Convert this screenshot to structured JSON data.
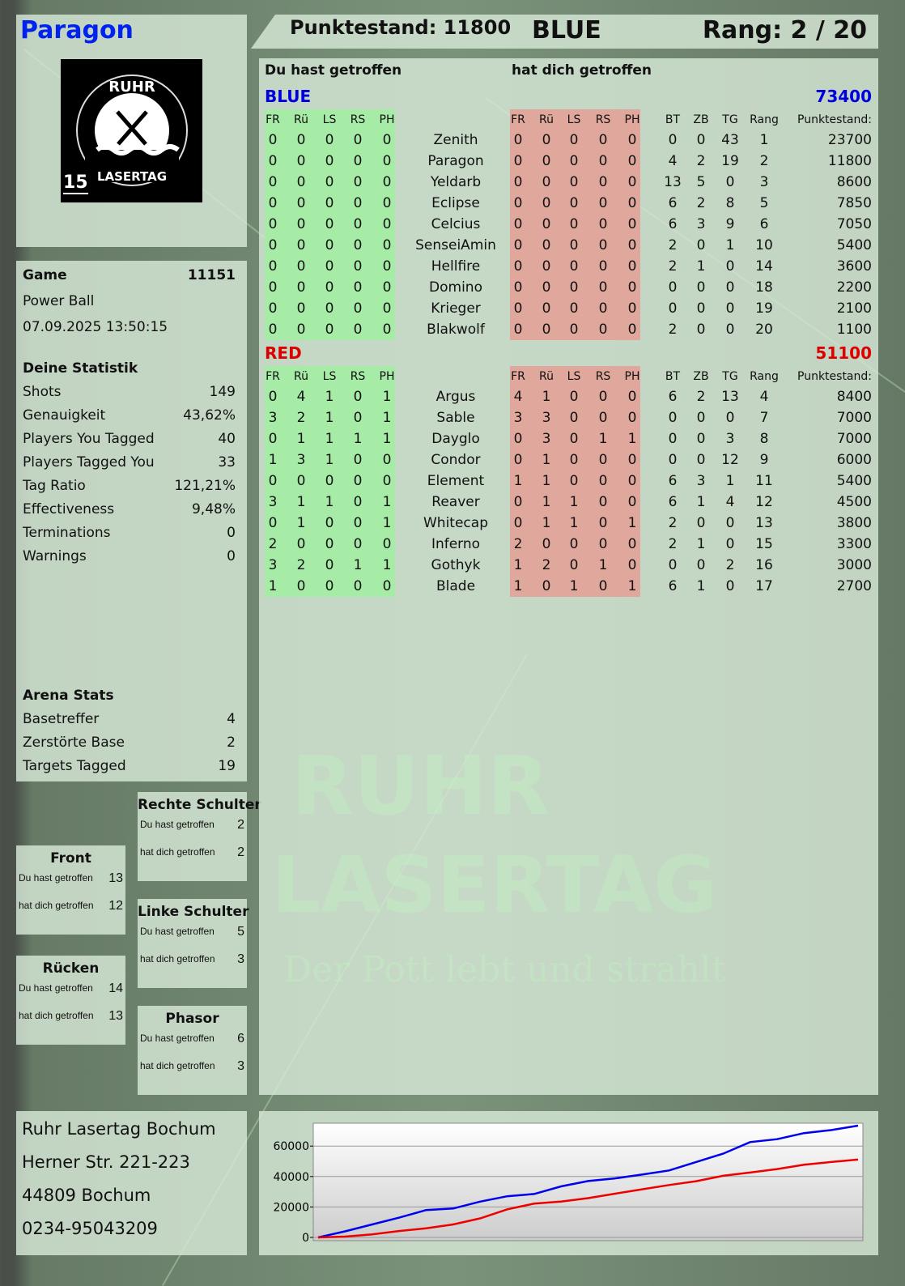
{
  "player": {
    "name": "Paragon",
    "level": "15"
  },
  "logo": {
    "top": "RUHR",
    "bottom": "LASERTAG"
  },
  "header": {
    "score_label": "Punktestand: 11800",
    "team": "BLUE",
    "rank": "Rang: 2 / 20"
  },
  "game": {
    "label": "Game",
    "number": "11151",
    "mode": "Power Ball",
    "datetime": "07.09.2025 13:50:15"
  },
  "stats": {
    "title": "Deine Statistik",
    "items": [
      {
        "label": "Shots",
        "value": "149"
      },
      {
        "label": "Genauigkeit",
        "value": "43,62%"
      },
      {
        "label": "Players You Tagged",
        "value": "40"
      },
      {
        "label": "Players Tagged You",
        "value": "33"
      },
      {
        "label": "Tag Ratio",
        "value": "121,21%"
      },
      {
        "label": "Effectiveness",
        "value": "9,48%"
      },
      {
        "label": "Terminations",
        "value": "0"
      },
      {
        "label": "Warnings",
        "value": "0"
      }
    ]
  },
  "arena": {
    "title": "Arena Stats",
    "items": [
      {
        "label": "Basetreffer",
        "value": "4"
      },
      {
        "label": "Zerstörte Base",
        "value": "2"
      },
      {
        "label": "Targets Tagged",
        "value": "19"
      }
    ]
  },
  "zones": [
    {
      "title": "Front",
      "hit": "13",
      "got": "12"
    },
    {
      "title": "Rücken",
      "hit": "14",
      "got": "13"
    },
    {
      "title": "Rechte Schulter",
      "hit": "2",
      "got": "2"
    },
    {
      "title": "Linke Schulter",
      "hit": "5",
      "got": "3"
    },
    {
      "title": "Phasor",
      "hit": "6",
      "got": "3"
    }
  ],
  "zone_labels": {
    "hit": "Du hast getroffen",
    "got": "hat dich getroffen"
  },
  "address": [
    "Ruhr Lasertag Bochum",
    "Herner Str. 221-223",
    "44809 Bochum",
    "0234-95043209"
  ],
  "table": {
    "you_hit": "Du hast getroffen",
    "hit_you": "hat dich getroffen",
    "hit_cols": [
      "FR",
      "Rü",
      "LS",
      "RS",
      "PH"
    ],
    "stat_cols": [
      "BT",
      "ZB",
      "TG",
      "Rang"
    ],
    "score_col": "Punktestand:",
    "teams": [
      {
        "name": "BLUE",
        "total": "73400",
        "color": "#0000dd",
        "players": [
          [
            "Zenith",
            [
              0,
              0,
              0,
              0,
              0
            ],
            [
              0,
              0,
              0,
              0,
              0
            ],
            [
              0,
              0,
              43,
              1
            ],
            23700
          ],
          [
            "Paragon",
            [
              0,
              0,
              0,
              0,
              0
            ],
            [
              0,
              0,
              0,
              0,
              0
            ],
            [
              4,
              2,
              19,
              2
            ],
            11800
          ],
          [
            "Yeldarb",
            [
              0,
              0,
              0,
              0,
              0
            ],
            [
              0,
              0,
              0,
              0,
              0
            ],
            [
              13,
              5,
              0,
              3
            ],
            8600
          ],
          [
            "Eclipse",
            [
              0,
              0,
              0,
              0,
              0
            ],
            [
              0,
              0,
              0,
              0,
              0
            ],
            [
              6,
              2,
              8,
              5
            ],
            7850
          ],
          [
            "Celcius",
            [
              0,
              0,
              0,
              0,
              0
            ],
            [
              0,
              0,
              0,
              0,
              0
            ],
            [
              6,
              3,
              9,
              6
            ],
            7050
          ],
          [
            "SenseiAmin",
            [
              0,
              0,
              0,
              0,
              0
            ],
            [
              0,
              0,
              0,
              0,
              0
            ],
            [
              2,
              0,
              1,
              10
            ],
            5400
          ],
          [
            "Hellfire",
            [
              0,
              0,
              0,
              0,
              0
            ],
            [
              0,
              0,
              0,
              0,
              0
            ],
            [
              2,
              1,
              0,
              14
            ],
            3600
          ],
          [
            "Domino",
            [
              0,
              0,
              0,
              0,
              0
            ],
            [
              0,
              0,
              0,
              0,
              0
            ],
            [
              0,
              0,
              0,
              18
            ],
            2200
          ],
          [
            "Krieger",
            [
              0,
              0,
              0,
              0,
              0
            ],
            [
              0,
              0,
              0,
              0,
              0
            ],
            [
              0,
              0,
              0,
              19
            ],
            2100
          ],
          [
            "Blakwolf",
            [
              0,
              0,
              0,
              0,
              0
            ],
            [
              0,
              0,
              0,
              0,
              0
            ],
            [
              2,
              0,
              0,
              20
            ],
            1100
          ]
        ]
      },
      {
        "name": "RED",
        "total": "51100",
        "color": "#dd0000",
        "players": [
          [
            "Argus",
            [
              0,
              4,
              1,
              0,
              1
            ],
            [
              4,
              1,
              0,
              0,
              0
            ],
            [
              6,
              2,
              13,
              4
            ],
            8400
          ],
          [
            "Sable",
            [
              3,
              2,
              1,
              0,
              1
            ],
            [
              3,
              3,
              0,
              0,
              0
            ],
            [
              0,
              0,
              0,
              7
            ],
            7000
          ],
          [
            "Dayglo",
            [
              0,
              1,
              1,
              1,
              1
            ],
            [
              0,
              3,
              0,
              1,
              1
            ],
            [
              0,
              0,
              3,
              8
            ],
            7000
          ],
          [
            "Condor",
            [
              1,
              3,
              1,
              0,
              0
            ],
            [
              0,
              1,
              0,
              0,
              0
            ],
            [
              0,
              0,
              12,
              9
            ],
            6000
          ],
          [
            "Element",
            [
              0,
              0,
              0,
              0,
              0
            ],
            [
              1,
              1,
              0,
              0,
              0
            ],
            [
              6,
              3,
              1,
              11
            ],
            5400
          ],
          [
            "Reaver",
            [
              3,
              1,
              1,
              0,
              1
            ],
            [
              0,
              1,
              1,
              0,
              0
            ],
            [
              6,
              1,
              4,
              12
            ],
            4500
          ],
          [
            "Whitecap",
            [
              0,
              1,
              0,
              0,
              1
            ],
            [
              0,
              1,
              1,
              0,
              1
            ],
            [
              2,
              0,
              0,
              13
            ],
            3800
          ],
          [
            "Inferno",
            [
              2,
              0,
              0,
              0,
              0
            ],
            [
              2,
              0,
              0,
              0,
              0
            ],
            [
              2,
              1,
              0,
              15
            ],
            3300
          ],
          [
            "Gothyk",
            [
              3,
              2,
              0,
              1,
              1
            ],
            [
              1,
              2,
              0,
              1,
              0
            ],
            [
              0,
              0,
              2,
              16
            ],
            3000
          ],
          [
            "Blade",
            [
              1,
              0,
              0,
              0,
              0
            ],
            [
              1,
              0,
              1,
              0,
              1
            ],
            [
              6,
              1,
              0,
              17
            ],
            2700
          ]
        ]
      }
    ]
  },
  "colors": {
    "hit_green": "#a6eba6",
    "hit_red": "#e0a89c",
    "blue": "#0000ee",
    "red": "#ee0000"
  },
  "watermark": {
    "line1": "RUHR",
    "line2": "LASERTAG",
    "slogan": "Der Pott lebt und strahlt"
  },
  "chart_data": {
    "type": "line",
    "ylim": [
      0,
      75000
    ],
    "yticks": [
      "0",
      "20000",
      "40000",
      "60000"
    ],
    "grid": true,
    "series": [
      {
        "color": "#0000ee",
        "values": [
          0,
          4000,
          8500,
          13000,
          18000,
          19000,
          23500,
          27000,
          28500,
          33500,
          37000,
          38800,
          41300,
          44000,
          49500,
          55000,
          62600,
          64500,
          68500,
          70500,
          73400
        ]
      },
      {
        "color": "#ee0000",
        "values": [
          0,
          550,
          2000,
          4200,
          6000,
          8500,
          12500,
          18400,
          22200,
          23500,
          25800,
          28700,
          31600,
          34400,
          36900,
          40500,
          42600,
          44900,
          47700,
          49500,
          51100
        ]
      }
    ]
  }
}
